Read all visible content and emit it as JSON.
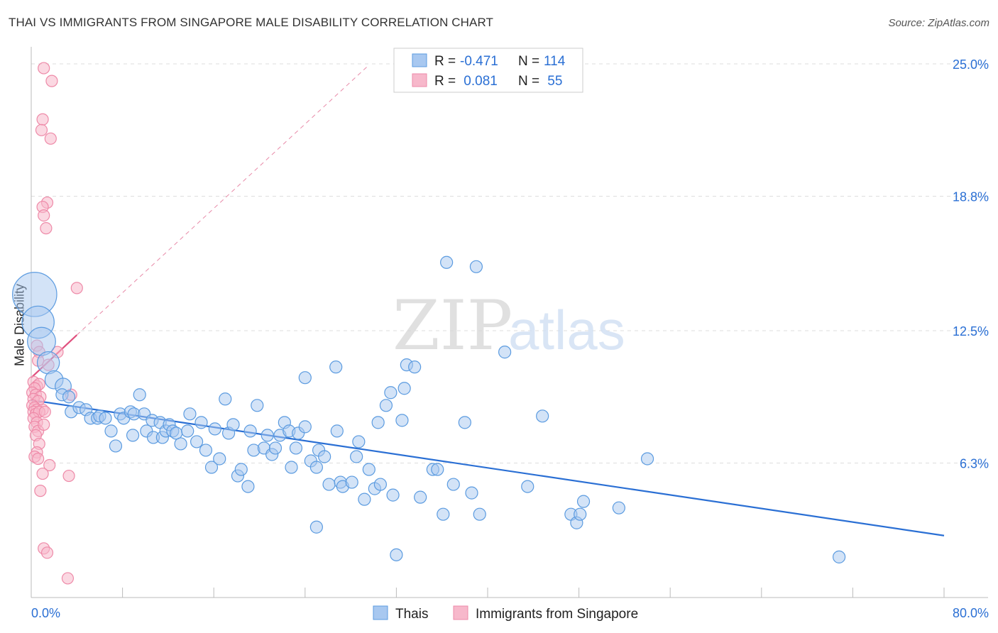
{
  "header": {
    "title": "THAI VS IMMIGRANTS FROM SINGAPORE MALE DISABILITY CORRELATION CHART",
    "source": "Source: ZipAtlas.com"
  },
  "watermark": {
    "zip": "ZIP",
    "atlas": "atlas"
  },
  "legend_top": {
    "rows": [
      {
        "r_label": "R =",
        "r_value": "-0.471",
        "n_label": "N =",
        "n_value": "114",
        "color": "#a8c8f0"
      },
      {
        "r_label": "R =",
        "r_value": " 0.081",
        "n_label": "N =",
        "n_value": " 55",
        "color": "#f7b8cb"
      }
    ]
  },
  "chart_data": {
    "type": "scatter",
    "title": "THAI VS IMMIGRANTS FROM SINGAPORE MALE DISABILITY CORRELATION CHART",
    "xlabel": "",
    "ylabel": "Male Disability",
    "xlim": [
      0,
      80
    ],
    "ylim": [
      0,
      25.6
    ],
    "x_tick_labels": [
      "0.0%",
      "80.0%"
    ],
    "y_ticks": [
      6.3,
      12.5,
      18.8,
      25.0
    ],
    "y_tick_labels": [
      "6.3%",
      "12.5%",
      "18.8%",
      "25.0%"
    ],
    "grid": true,
    "legend_placement": "bottom-center",
    "series": [
      {
        "name": "Thais",
        "color": "#5b9be0",
        "fill": "#a8c8f0",
        "R": -0.471,
        "N": 114,
        "trend": {
          "x": [
            0,
            80
          ],
          "y": [
            9.25,
            2.9
          ],
          "color": "#2a6fd4"
        },
        "points": [
          [
            0.3,
            14.2,
            2.2
          ],
          [
            0.6,
            12.9,
            1.6
          ],
          [
            0.9,
            12.0,
            1.4
          ],
          [
            1.5,
            11.0,
            1.1
          ],
          [
            2.0,
            10.2,
            0.9
          ],
          [
            2.8,
            9.9,
            0.8
          ],
          [
            2.7,
            9.5,
            0.6
          ],
          [
            3.3,
            9.4,
            0.6
          ],
          [
            3.5,
            8.7,
            0.6
          ],
          [
            4.2,
            8.9,
            0.6
          ],
          [
            4.8,
            8.8,
            0.6
          ],
          [
            5.2,
            8.4,
            0.6
          ],
          [
            5.8,
            8.4,
            0.6
          ],
          [
            6.0,
            8.5,
            0.6
          ],
          [
            6.5,
            8.4,
            0.6
          ],
          [
            7.0,
            7.8,
            0.6
          ],
          [
            7.4,
            7.1,
            0.6
          ],
          [
            7.8,
            8.6,
            0.6
          ],
          [
            8.1,
            8.4,
            0.6
          ],
          [
            8.7,
            8.7,
            0.6
          ],
          [
            8.9,
            7.6,
            0.6
          ],
          [
            9.0,
            8.6,
            0.6
          ],
          [
            9.5,
            9.5,
            0.6
          ],
          [
            9.9,
            8.6,
            0.6
          ],
          [
            10.1,
            7.8,
            0.6
          ],
          [
            10.6,
            8.3,
            0.6
          ],
          [
            10.7,
            7.5,
            0.6
          ],
          [
            11.3,
            8.2,
            0.6
          ],
          [
            11.5,
            7.5,
            0.6
          ],
          [
            11.8,
            7.8,
            0.6
          ],
          [
            12.1,
            8.1,
            0.6
          ],
          [
            12.4,
            7.8,
            0.6
          ],
          [
            12.7,
            7.7,
            0.6
          ],
          [
            13.1,
            7.2,
            0.6
          ],
          [
            13.7,
            7.8,
            0.6
          ],
          [
            13.9,
            8.6,
            0.6
          ],
          [
            14.5,
            7.3,
            0.6
          ],
          [
            14.9,
            8.2,
            0.6
          ],
          [
            15.3,
            6.9,
            0.6
          ],
          [
            15.8,
            6.1,
            0.6
          ],
          [
            16.1,
            7.9,
            0.6
          ],
          [
            16.5,
            6.5,
            0.6
          ],
          [
            17.0,
            9.3,
            0.6
          ],
          [
            17.3,
            7.7,
            0.6
          ],
          [
            17.7,
            8.1,
            0.6
          ],
          [
            18.1,
            5.7,
            0.6
          ],
          [
            18.4,
            6.0,
            0.6
          ],
          [
            19.0,
            5.2,
            0.6
          ],
          [
            19.2,
            7.8,
            0.6
          ],
          [
            19.5,
            6.9,
            0.6
          ],
          [
            19.8,
            9.0,
            0.6
          ],
          [
            20.4,
            7.0,
            0.6
          ],
          [
            20.7,
            7.6,
            0.6
          ],
          [
            21.1,
            6.7,
            0.6
          ],
          [
            21.4,
            7.0,
            0.6
          ],
          [
            21.8,
            7.6,
            0.6
          ],
          [
            22.2,
            8.2,
            0.6
          ],
          [
            22.6,
            7.8,
            0.6
          ],
          [
            22.8,
            6.1,
            0.6
          ],
          [
            23.2,
            7.0,
            0.6
          ],
          [
            23.4,
            7.7,
            0.6
          ],
          [
            24.0,
            8.0,
            0.6
          ],
          [
            24.5,
            6.4,
            0.6
          ],
          [
            24.0,
            10.3,
            0.6
          ],
          [
            25.0,
            6.1,
            0.6
          ],
          [
            25.2,
            6.9,
            0.6
          ],
          [
            25.7,
            6.6,
            0.6
          ],
          [
            25.0,
            3.3,
            0.6
          ],
          [
            26.1,
            5.3,
            0.6
          ],
          [
            26.7,
            10.8,
            0.6
          ],
          [
            26.8,
            7.8,
            0.6
          ],
          [
            27.1,
            5.4,
            0.6
          ],
          [
            27.3,
            5.2,
            0.6
          ],
          [
            28.1,
            5.4,
            0.6
          ],
          [
            28.5,
            6.6,
            0.6
          ],
          [
            28.7,
            7.3,
            0.6
          ],
          [
            29.2,
            4.6,
            0.6
          ],
          [
            29.6,
            6.0,
            0.6
          ],
          [
            30.1,
            5.1,
            0.6
          ],
          [
            30.4,
            8.2,
            0.6
          ],
          [
            30.6,
            5.3,
            0.6
          ],
          [
            31.1,
            9.0,
            0.6
          ],
          [
            31.5,
            9.6,
            0.6
          ],
          [
            31.7,
            4.8,
            0.6
          ],
          [
            32.0,
            2.0,
            0.6
          ],
          [
            32.5,
            8.3,
            0.6
          ],
          [
            32.7,
            9.8,
            0.6
          ],
          [
            32.9,
            10.9,
            0.6
          ],
          [
            33.6,
            10.8,
            0.6
          ],
          [
            34.1,
            4.7,
            0.6
          ],
          [
            35.2,
            6.0,
            0.6
          ],
          [
            35.6,
            6.0,
            0.6
          ],
          [
            36.1,
            3.9,
            0.6
          ],
          [
            36.4,
            15.7,
            0.6
          ],
          [
            37.0,
            5.3,
            0.6
          ],
          [
            38.0,
            8.2,
            0.6
          ],
          [
            38.6,
            4.9,
            0.6
          ],
          [
            39.0,
            15.5,
            0.6
          ],
          [
            39.3,
            3.9,
            0.6
          ],
          [
            41.5,
            11.5,
            0.6
          ],
          [
            43.5,
            5.2,
            0.6
          ],
          [
            44.8,
            8.5,
            0.6
          ],
          [
            47.3,
            3.9,
            0.6
          ],
          [
            47.8,
            3.5,
            0.6
          ],
          [
            48.1,
            3.9,
            0.6
          ],
          [
            48.4,
            4.5,
            0.6
          ],
          [
            51.5,
            4.2,
            0.6
          ],
          [
            54.0,
            6.5,
            0.6
          ],
          [
            70.8,
            1.9,
            0.6
          ]
        ]
      },
      {
        "name": "Immigrants from Singapore",
        "color": "#ee8aa8",
        "fill": "#f7b8cb",
        "R": 0.081,
        "N": 55,
        "trend": {
          "x": [
            0,
            4.0
          ],
          "y": [
            10.3,
            12.3
          ],
          "color": "#e0507e"
        },
        "trend_extension": {
          "x": [
            4.0,
            29.5
          ],
          "y": [
            12.3,
            24.9
          ],
          "color": "#e88aa8"
        },
        "points": [
          [
            1.1,
            24.8
          ],
          [
            1.8,
            24.2
          ],
          [
            1.0,
            22.4
          ],
          [
            0.9,
            21.9
          ],
          [
            1.7,
            21.5
          ],
          [
            1.4,
            18.5
          ],
          [
            1.0,
            18.3
          ],
          [
            1.1,
            17.9
          ],
          [
            1.3,
            17.3
          ],
          [
            4.0,
            14.5
          ],
          [
            0.5,
            11.8
          ],
          [
            0.7,
            11.5
          ],
          [
            2.3,
            11.5
          ],
          [
            0.6,
            11.1
          ],
          [
            1.5,
            10.9
          ],
          [
            0.2,
            10.1
          ],
          [
            0.5,
            9.9
          ],
          [
            0.7,
            10.0
          ],
          [
            0.3,
            9.8
          ],
          [
            0.1,
            9.6
          ],
          [
            0.4,
            9.5
          ],
          [
            0.8,
            9.4
          ],
          [
            0.2,
            9.3
          ],
          [
            0.6,
            9.2
          ],
          [
            3.5,
            9.5
          ],
          [
            0.1,
            9.0
          ],
          [
            0.3,
            8.9
          ],
          [
            0.5,
            8.8
          ],
          [
            0.2,
            8.7
          ],
          [
            1.0,
            8.8
          ],
          [
            0.4,
            8.6
          ],
          [
            0.7,
            8.7
          ],
          [
            1.2,
            8.7
          ],
          [
            0.2,
            8.4
          ],
          [
            0.5,
            8.2
          ],
          [
            0.3,
            8.0
          ],
          [
            0.6,
            7.8
          ],
          [
            1.1,
            8.1
          ],
          [
            0.4,
            7.6
          ],
          [
            0.7,
            7.2
          ],
          [
            0.5,
            6.8
          ],
          [
            0.3,
            6.6
          ],
          [
            0.6,
            6.5
          ],
          [
            1.6,
            6.2
          ],
          [
            1.0,
            5.8
          ],
          [
            3.3,
            5.7
          ],
          [
            0.8,
            5.0
          ],
          [
            1.1,
            2.3
          ],
          [
            1.4,
            2.1
          ],
          [
            3.2,
            0.9
          ]
        ]
      }
    ]
  },
  "legend_bottom": {
    "items": [
      {
        "label": "Thais",
        "color": "#a8c8f0"
      },
      {
        "label": "Immigrants from Singapore",
        "color": "#f7b8cb"
      }
    ]
  }
}
